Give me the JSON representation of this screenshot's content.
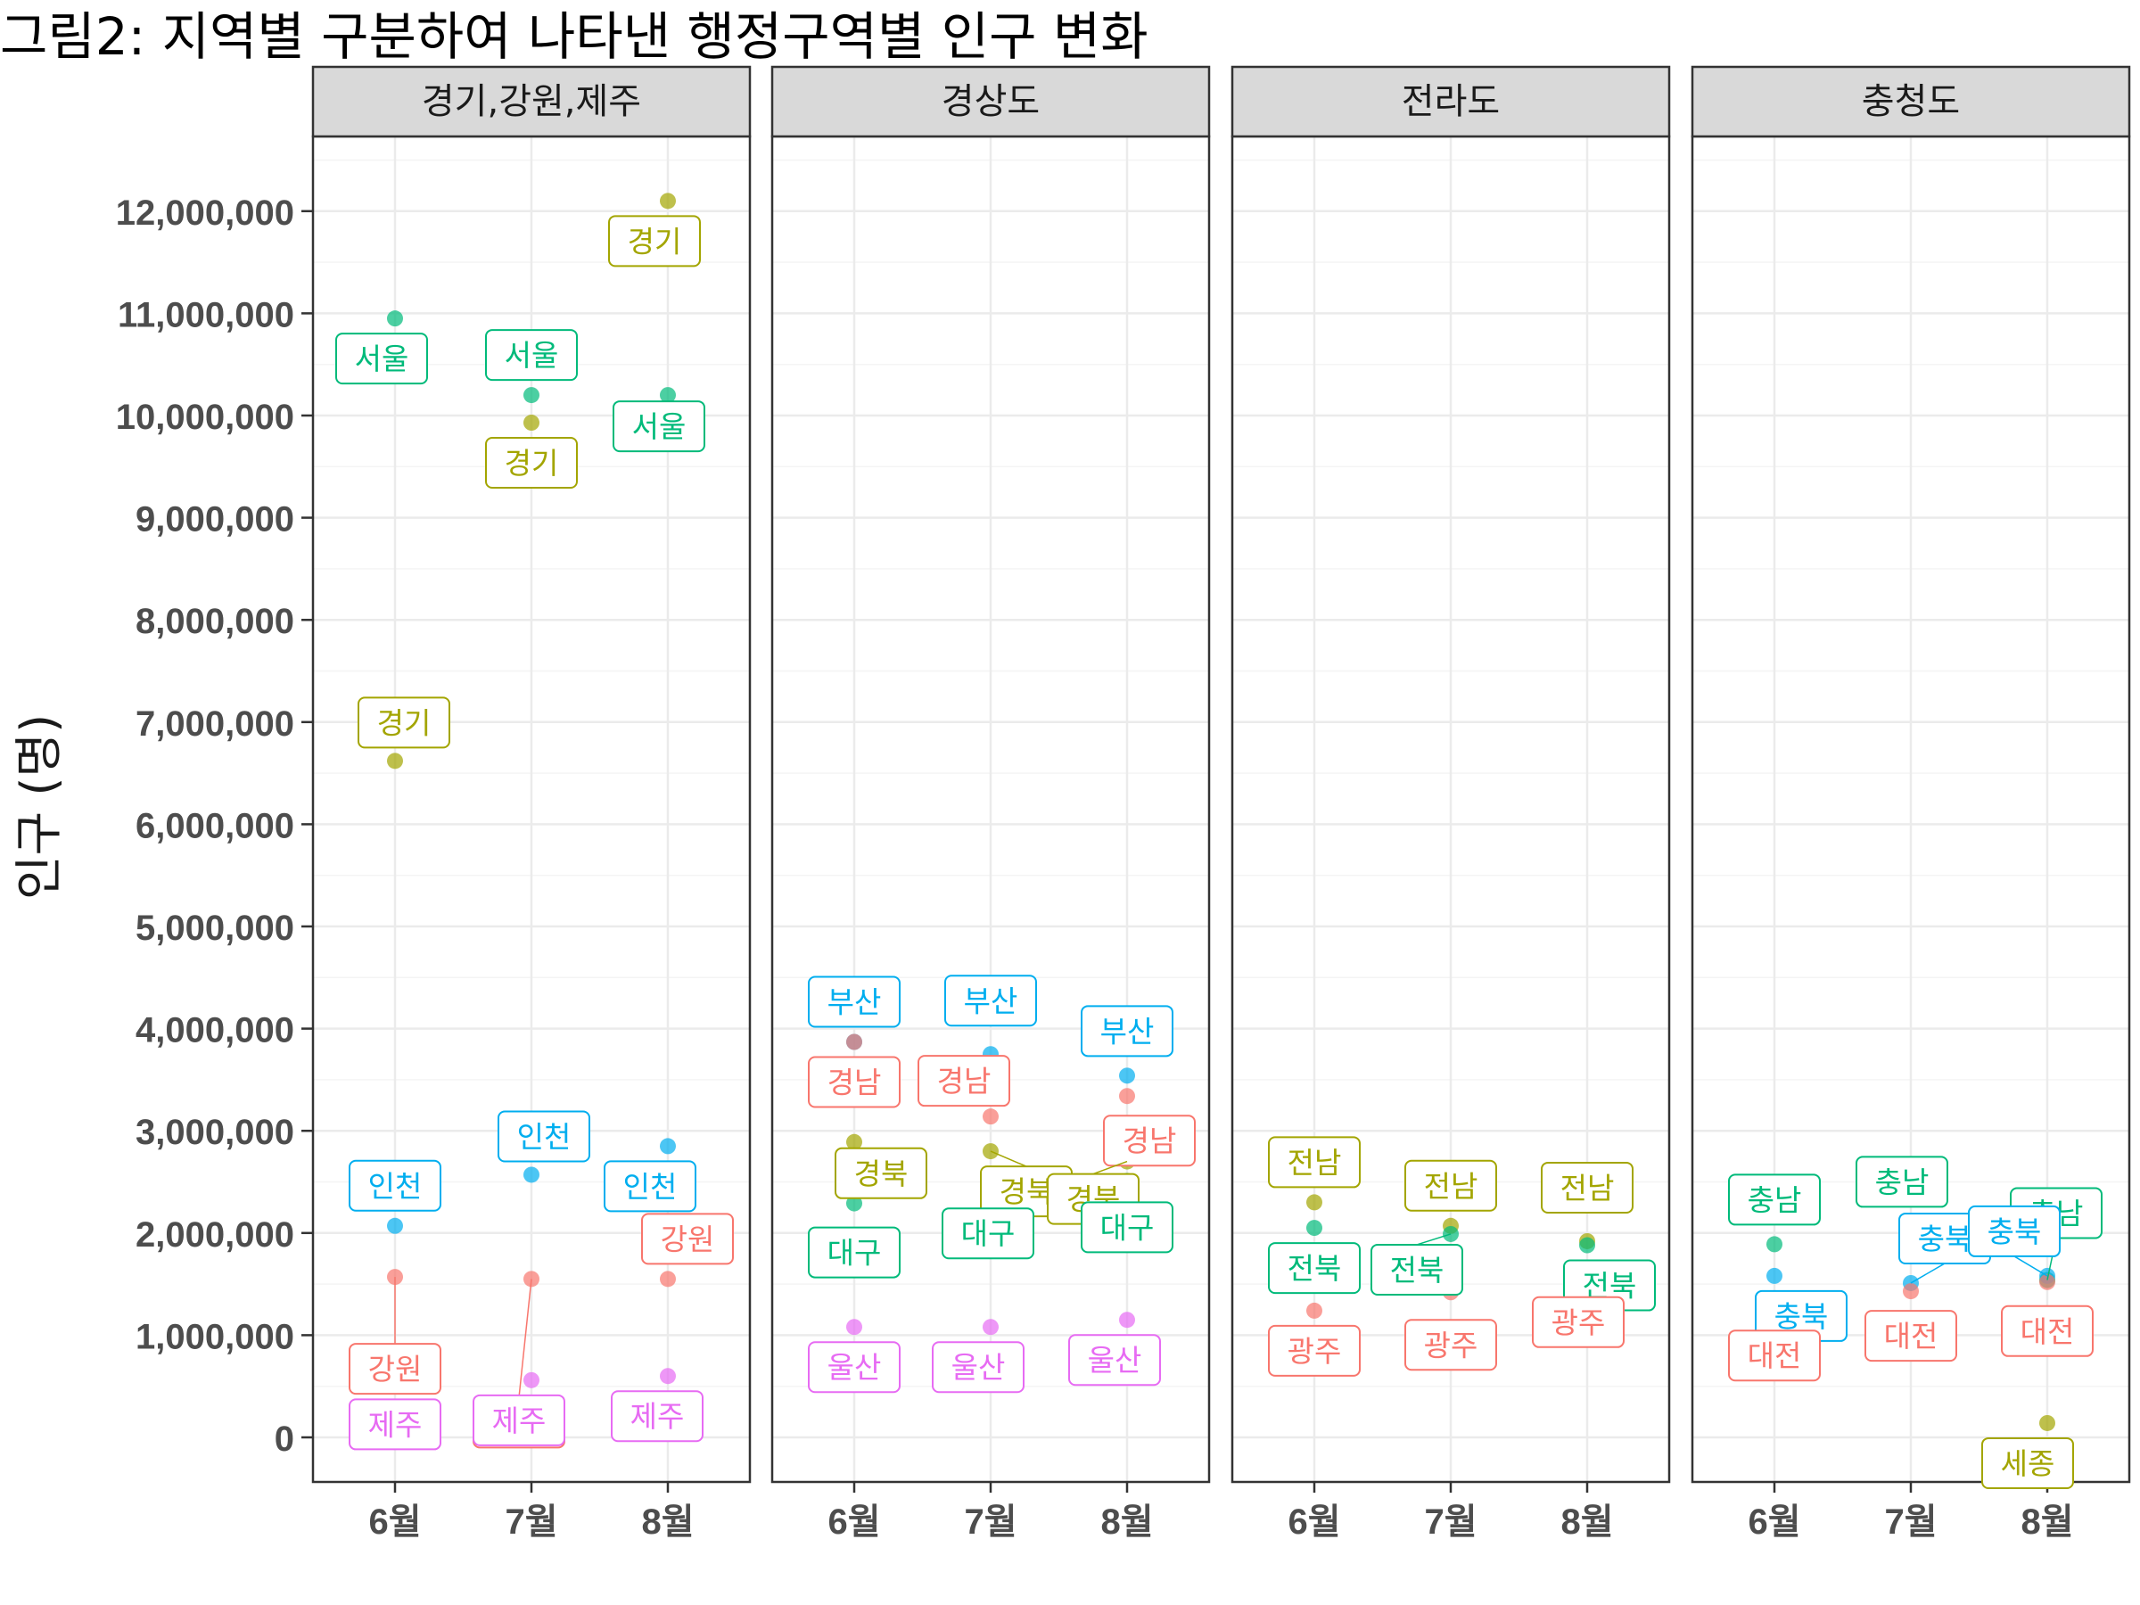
{
  "page": {
    "title": "그림2: 지역별 구분하여 나타낸 행정구역별 인구 변화"
  },
  "chart_data": {
    "type": "scatter",
    "title": "그림2: 지역별 구분하여 나타낸 행정구역별 인구 변화",
    "xlabel": "",
    "ylabel": "인구 (명)",
    "ylim": [
      -450000,
      12700000
    ],
    "y_ticks": [
      0,
      1000000,
      2000000,
      3000000,
      4000000,
      5000000,
      6000000,
      7000000,
      8000000,
      9000000,
      10000000,
      11000000,
      12000000
    ],
    "y_tick_labels": [
      "0",
      "1,000,000",
      "2,000,000",
      "3,000,000",
      "4,000,000",
      "5,000,000",
      "6,000,000",
      "7,000,000",
      "8,000,000",
      "9,000,000",
      "10,000,000",
      "11,000,000",
      "12,000,000"
    ],
    "categories": [
      "6월",
      "7월",
      "8월"
    ],
    "grid": true,
    "legend": "none",
    "facets": [
      {
        "name": "경기,강원,제주",
        "series": [
          {
            "name": "서울",
            "color": "#00BA7A",
            "values": [
              10950000,
              10200000,
              10200000
            ]
          },
          {
            "name": "경기",
            "color": "#A3A500",
            "values": [
              6620000,
              9930000,
              12100000
            ]
          },
          {
            "name": "인천",
            "color": "#00AEEF",
            "values": [
              2070000,
              2570000,
              2850000
            ]
          },
          {
            "name": "강원",
            "color": "#F8766D",
            "values": [
              1570000,
              1550000,
              1550000
            ]
          },
          {
            "name": "제주",
            "color": "#E76BF3",
            "values": [
              520000,
              560000,
              600000
            ]
          }
        ]
      },
      {
        "name": "경상도",
        "series": [
          {
            "name": "부산",
            "color": "#00AEEF",
            "values": [
              3870000,
              3750000,
              3540000
            ]
          },
          {
            "name": "경남",
            "color": "#F8766D",
            "values": [
              3870000,
              3140000,
              3340000
            ]
          },
          {
            "name": "경북",
            "color": "#A3A500",
            "values": [
              2890000,
              2800000,
              2700000
            ]
          },
          {
            "name": "대구",
            "color": "#00BA7A",
            "values": [
              2290000,
              2520000,
              2510000
            ]
          },
          {
            "name": "울산",
            "color": "#E76BF3",
            "values": [
              1080000,
              1080000,
              1150000
            ]
          }
        ]
      },
      {
        "name": "전라도",
        "series": [
          {
            "name": "전남",
            "color": "#A3A500",
            "values": [
              2300000,
              2070000,
              1920000
            ]
          },
          {
            "name": "전북",
            "color": "#00BA7A",
            "values": [
              2050000,
              1990000,
              1880000
            ]
          },
          {
            "name": "광주",
            "color": "#F8766D",
            "values": [
              1240000,
              1420000,
              1520000
            ]
          }
        ]
      },
      {
        "name": "충청도",
        "series": [
          {
            "name": "충남",
            "color": "#00BA7A",
            "values": [
              1890000,
              1890000,
              1540000
            ]
          },
          {
            "name": "충북",
            "color": "#00AEEF",
            "values": [
              1580000,
              1510000,
              1580000
            ]
          },
          {
            "name": "대전",
            "color": "#F8766D",
            "values": [
              1150000,
              1430000,
              1520000
            ]
          },
          {
            "name": "세종",
            "color": "#A3A500",
            "values": [
              null,
              null,
              140000
            ]
          }
        ]
      }
    ]
  }
}
